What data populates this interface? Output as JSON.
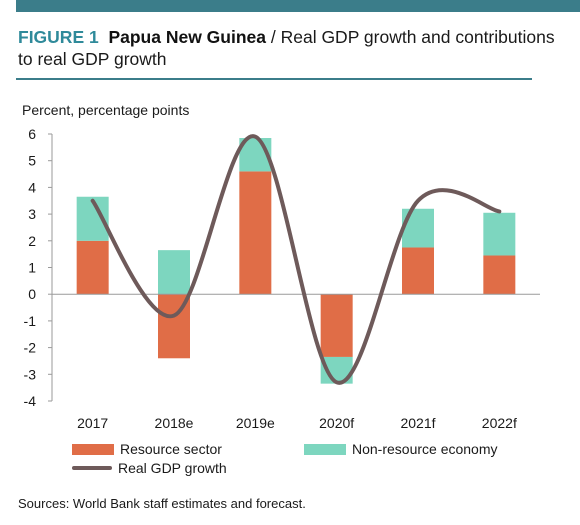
{
  "figure": {
    "number": "FIGURE 1",
    "country": "Papua New Guinea",
    "title_rest": " / Real GDP growth and contributions to real GDP growth"
  },
  "source": "Sources: World Bank staff estimates and forecast.",
  "colors": {
    "resource": "#e06d47",
    "non_resource": "#7dd6bf",
    "gdp_line": "#6e5a5a",
    "accent": "#2f8a9a",
    "rule": "#3b7d8a"
  },
  "chart_data": {
    "type": "bar",
    "stacked": true,
    "ylabel": "Percent, percentage points",
    "ylim": [
      -4,
      6
    ],
    "yticks": [
      -4,
      -3,
      -2,
      -1,
      0,
      1,
      2,
      3,
      4,
      5,
      6
    ],
    "categories": [
      "2017",
      "2018e",
      "2019e",
      "2020f",
      "2021f",
      "2022f"
    ],
    "series": [
      {
        "name": "Resource sector",
        "kind": "bar",
        "values": [
          2.0,
          -2.4,
          4.6,
          -2.35,
          1.75,
          1.45
        ]
      },
      {
        "name": "Non-resource economy",
        "kind": "bar",
        "values": [
          1.65,
          1.65,
          1.25,
          -1.0,
          1.45,
          1.6
        ]
      },
      {
        "name": "Real GDP growth",
        "kind": "line",
        "smooth": true,
        "values": [
          3.5,
          -0.8,
          5.9,
          -3.3,
          3.5,
          3.1
        ]
      }
    ],
    "legend_position": "bottom",
    "grid": false
  }
}
